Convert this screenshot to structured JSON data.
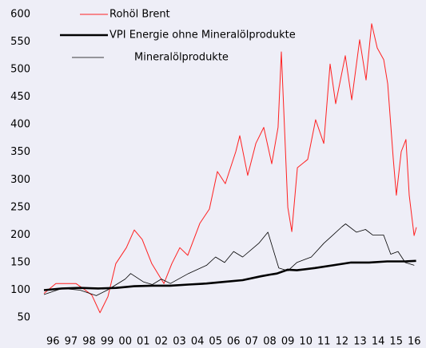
{
  "chart_data": {
    "type": "line",
    "xlim": [
      0,
      21
    ],
    "xticks": [
      {
        "value": 0.5,
        "label": "96"
      },
      {
        "value": 1.5,
        "label": "97"
      },
      {
        "value": 2.5,
        "label": "98"
      },
      {
        "value": 3.5,
        "label": "99"
      },
      {
        "value": 4.5,
        "label": "00"
      },
      {
        "value": 5.5,
        "label": "01"
      },
      {
        "value": 6.5,
        "label": "02"
      },
      {
        "value": 7.5,
        "label": "03"
      },
      {
        "value": 8.5,
        "label": "04"
      },
      {
        "value": 9.5,
        "label": "05"
      },
      {
        "value": 10.5,
        "label": "06"
      },
      {
        "value": 11.5,
        "label": "07"
      },
      {
        "value": 12.5,
        "label": "08"
      },
      {
        "value": 13.5,
        "label": "09"
      },
      {
        "value": 14.5,
        "label": "10"
      },
      {
        "value": 15.5,
        "label": "11"
      },
      {
        "value": 16.5,
        "label": "12"
      },
      {
        "value": 17.5,
        "label": "13"
      },
      {
        "value": 18.5,
        "label": "14"
      },
      {
        "value": 19.5,
        "label": "15"
      },
      {
        "value": 20.5,
        "label": "16"
      }
    ],
    "ylim": [
      50,
      600
    ],
    "yticks": [
      50,
      100,
      150,
      200,
      250,
      300,
      350,
      400,
      450,
      500,
      550,
      600
    ],
    "series": [
      {
        "name": "Rohöl Brent",
        "color": "#ff2020",
        "width": 1,
        "x": [
          0,
          0.66,
          1.77,
          2.21,
          2.65,
          3.1,
          3.54,
          3.98,
          4.56,
          5.0,
          5.44,
          5.97,
          6.64,
          7.08,
          7.52,
          7.96,
          8.63,
          9.16,
          9.6,
          10.04,
          10.62,
          10.84,
          11.28,
          11.73,
          12.17,
          12.61,
          12.96,
          13.14,
          13.5,
          13.72,
          14.03,
          14.6,
          15.04,
          15.49,
          15.84,
          16.15,
          16.68,
          17.04,
          17.48,
          17.83,
          18.14,
          18.45,
          18.81,
          19.03,
          19.34,
          19.51,
          19.78,
          20.04,
          20.22,
          20.49,
          20.62
        ],
        "values": [
          94,
          112,
          112,
          102,
          91,
          59,
          88,
          148,
          177,
          209,
          192,
          148,
          112,
          148,
          177,
          163,
          221,
          247,
          315,
          293,
          351,
          380,
          308,
          366,
          395,
          329,
          395,
          532,
          250,
          206,
          322,
          337,
          409,
          366,
          510,
          438,
          525,
          445,
          554,
          481,
          583,
          539,
          518,
          474,
          337,
          272,
          351,
          373,
          272,
          199,
          214
        ]
      },
      {
        "name": "VPI Energie ohne Mineralölprodukte",
        "color": "#000000",
        "width": 2.6,
        "x": [
          0,
          1,
          2,
          3,
          4,
          5,
          6,
          7,
          8,
          9,
          10,
          11,
          12,
          12.5,
          12.9,
          13.5,
          14,
          15,
          16,
          17,
          18,
          19,
          20,
          20.6
        ],
        "values": [
          100,
          103,
          104,
          103,
          104,
          107,
          108,
          108,
          110,
          112,
          115,
          118,
          125,
          128,
          130,
          137,
          136,
          140,
          145,
          150,
          150,
          152,
          152,
          153
        ]
      },
      {
        "name": "Mineralölprodukte",
        "color": "#000000",
        "width": 0.8,
        "x": [
          0,
          1,
          2,
          2.9,
          3.5,
          4.5,
          4.8,
          5.5,
          6,
          6.5,
          7,
          8,
          9,
          9.5,
          10,
          10.5,
          11,
          11.9,
          12.4,
          13,
          13.5,
          14,
          14.8,
          15.5,
          16,
          16.5,
          16.7,
          17.3,
          17.8,
          18.2,
          18.8,
          19.2,
          19.6,
          20,
          20.5
        ],
        "values": [
          92,
          103,
          100,
          90,
          100,
          120,
          130,
          115,
          110,
          120,
          112,
          130,
          145,
          160,
          150,
          170,
          160,
          185,
          205,
          140,
          135,
          150,
          160,
          185,
          200,
          215,
          220,
          205,
          210,
          200,
          200,
          165,
          170,
          150,
          145
        ]
      }
    ]
  }
}
